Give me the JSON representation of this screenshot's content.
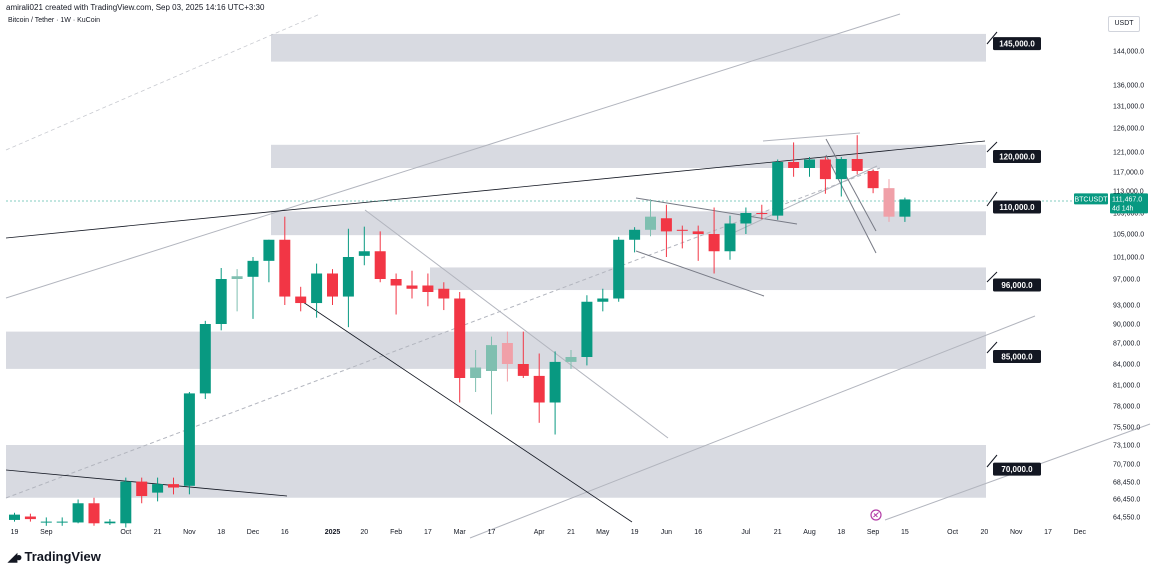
{
  "header": {
    "text": "amirali021 created with TradingView.com, Sep 03, 2025 14:16 UTC+3:30"
  },
  "brand": {
    "name": "TradingView"
  },
  "chart_data": {
    "type": "candlestick",
    "title": "Bitcoin / Tether · 1W · KuCoin",
    "currency": "USDT",
    "ylim": [
      64000,
      150000
    ],
    "y_ticks": [
      {
        "v": 144000,
        "label": "144,000.0"
      },
      {
        "v": 136000,
        "label": "136,000.0"
      },
      {
        "v": 131000,
        "label": "131,000.0"
      },
      {
        "v": 126000,
        "label": "126,000.0"
      },
      {
        "v": 121000,
        "label": "121,000.0"
      },
      {
        "v": 117000,
        "label": "117,000.0"
      },
      {
        "v": 113000,
        "label": "113,000.0"
      },
      {
        "v": 109000,
        "label": "109,000.0"
      },
      {
        "v": 105000,
        "label": "105,000.0"
      },
      {
        "v": 101000,
        "label": "101,000.0"
      },
      {
        "v": 97000,
        "label": "97,000.0"
      },
      {
        "v": 93000,
        "label": "93,000.0"
      },
      {
        "v": 90000,
        "label": "90,000.0"
      },
      {
        "v": 87000,
        "label": "87,000.0"
      },
      {
        "v": 84000,
        "label": "84,000.0"
      },
      {
        "v": 81000,
        "label": "81,000.0"
      },
      {
        "v": 78000,
        "label": "78,000.0"
      },
      {
        "v": 75500,
        "label": "75,500.0"
      },
      {
        "v": 73100,
        "label": "73,100.0"
      },
      {
        "v": 70700,
        "label": "70,700.0"
      },
      {
        "v": 68450,
        "label": "68,450.0"
      },
      {
        "v": 66450,
        "label": "66,450.0"
      },
      {
        "v": 64550,
        "label": "64,550.0"
      }
    ],
    "x_ticks": [
      {
        "i": 0,
        "label": "19",
        "bold": false
      },
      {
        "i": 2,
        "label": "Sep",
        "bold": false
      },
      {
        "i": 7,
        "label": "Oct",
        "bold": false
      },
      {
        "i": 9,
        "label": "21",
        "bold": false
      },
      {
        "i": 11,
        "label": "Nov",
        "bold": false
      },
      {
        "i": 13,
        "label": "18",
        "bold": false
      },
      {
        "i": 15,
        "label": "Dec",
        "bold": false
      },
      {
        "i": 17,
        "label": "16",
        "bold": false
      },
      {
        "i": 20,
        "label": "2025",
        "bold": true
      },
      {
        "i": 22,
        "label": "20",
        "bold": false
      },
      {
        "i": 24,
        "label": "Feb",
        "bold": false
      },
      {
        "i": 26,
        "label": "17",
        "bold": false
      },
      {
        "i": 28,
        "label": "Mar",
        "bold": false
      },
      {
        "i": 30,
        "label": "17",
        "bold": false
      },
      {
        "i": 33,
        "label": "Apr",
        "bold": false
      },
      {
        "i": 35,
        "label": "21",
        "bold": false
      },
      {
        "i": 37,
        "label": "May",
        "bold": false
      },
      {
        "i": 39,
        "label": "19",
        "bold": false
      },
      {
        "i": 41,
        "label": "Jun",
        "bold": false
      },
      {
        "i": 43,
        "label": "16",
        "bold": false
      },
      {
        "i": 46,
        "label": "Jul",
        "bold": false
      },
      {
        "i": 48,
        "label": "21",
        "bold": false
      },
      {
        "i": 50,
        "label": "Aug",
        "bold": false
      },
      {
        "i": 52,
        "label": "18",
        "bold": false
      },
      {
        "i": 54,
        "label": "Sep",
        "bold": false
      },
      {
        "i": 56,
        "label": "15",
        "bold": false
      },
      {
        "i": 59,
        "label": "Oct",
        "bold": false
      },
      {
        "i": 61,
        "label": "20",
        "bold": false
      },
      {
        "i": 63,
        "label": "Nov",
        "bold": false
      },
      {
        "i": 65,
        "label": "17",
        "bold": false
      },
      {
        "i": 67,
        "label": "Dec",
        "bold": false
      }
    ],
    "candles": [
      {
        "o": 64200,
        "h": 65000,
        "l": 64000,
        "c": 64800
      },
      {
        "o": 64600,
        "h": 64900,
        "l": 64000,
        "c": 64300
      },
      {
        "o": 64000,
        "h": 64500,
        "l": 63500,
        "c": 64000
      },
      {
        "o": 64000,
        "h": 64500,
        "l": 63500,
        "c": 64000
      },
      {
        "o": 63900,
        "h": 66400,
        "l": 63800,
        "c": 66000
      },
      {
        "o": 66000,
        "h": 66600,
        "l": 63500,
        "c": 63800
      },
      {
        "o": 63800,
        "h": 64300,
        "l": 63600,
        "c": 64000
      },
      {
        "o": 63800,
        "h": 69000,
        "l": 63300,
        "c": 68500
      },
      {
        "o": 68500,
        "h": 69000,
        "l": 66000,
        "c": 66800
      },
      {
        "o": 67200,
        "h": 69000,
        "l": 66200,
        "c": 68200
      },
      {
        "o": 68200,
        "h": 69000,
        "l": 67000,
        "c": 67800
      },
      {
        "o": 68000,
        "h": 80000,
        "l": 67000,
        "c": 79800
      },
      {
        "o": 79800,
        "h": 90500,
        "l": 79000,
        "c": 90000
      },
      {
        "o": 90000,
        "h": 99000,
        "l": 89000,
        "c": 97000
      },
      {
        "o": 97000,
        "h": 98800,
        "l": 92000,
        "c": 97500
      },
      {
        "o": 97400,
        "h": 101000,
        "l": 90800,
        "c": 100300
      },
      {
        "o": 100300,
        "h": 104000,
        "l": 96500,
        "c": 104000
      },
      {
        "o": 104000,
        "h": 108300,
        "l": 93000,
        "c": 94300
      },
      {
        "o": 94300,
        "h": 95800,
        "l": 92000,
        "c": 93300
      },
      {
        "o": 93300,
        "h": 99800,
        "l": 91000,
        "c": 98000
      },
      {
        "o": 98000,
        "h": 98800,
        "l": 93000,
        "c": 94300
      },
      {
        "o": 94300,
        "h": 106000,
        "l": 89500,
        "c": 101000
      },
      {
        "o": 101200,
        "h": 106400,
        "l": 99500,
        "c": 102000
      },
      {
        "o": 102000,
        "h": 105500,
        "l": 96500,
        "c": 97000
      },
      {
        "o": 97000,
        "h": 98000,
        "l": 91500,
        "c": 96000
      },
      {
        "o": 96000,
        "h": 98500,
        "l": 94000,
        "c": 95500
      },
      {
        "o": 96000,
        "h": 98000,
        "l": 92800,
        "c": 95000
      },
      {
        "o": 95500,
        "h": 96500,
        "l": 92200,
        "c": 94000
      },
      {
        "o": 94000,
        "h": 95000,
        "l": 78500,
        "c": 82000
      },
      {
        "o": 82000,
        "h": 86000,
        "l": 80000,
        "c": 83500
      },
      {
        "o": 83000,
        "h": 88000,
        "l": 77000,
        "c": 86700
      },
      {
        "o": 87000,
        "h": 88800,
        "l": 81500,
        "c": 84000
      },
      {
        "o": 84000,
        "h": 88800,
        "l": 82000,
        "c": 82300
      },
      {
        "o": 82300,
        "h": 85500,
        "l": 76000,
        "c": 78500
      },
      {
        "o": 78500,
        "h": 85800,
        "l": 74500,
        "c": 84300
      },
      {
        "o": 84300,
        "h": 86000,
        "l": 83300,
        "c": 85000
      },
      {
        "o": 85000,
        "h": 94500,
        "l": 83800,
        "c": 93500
      },
      {
        "o": 93500,
        "h": 95500,
        "l": 92000,
        "c": 94000
      },
      {
        "o": 94000,
        "h": 104500,
        "l": 93500,
        "c": 104000
      },
      {
        "o": 104000,
        "h": 106300,
        "l": 101800,
        "c": 105800
      },
      {
        "o": 105800,
        "h": 111500,
        "l": 104600,
        "c": 108300
      },
      {
        "o": 108000,
        "h": 110500,
        "l": 101000,
        "c": 105500
      },
      {
        "o": 105800,
        "h": 106600,
        "l": 102500,
        "c": 105600
      },
      {
        "o": 105500,
        "h": 106600,
        "l": 100300,
        "c": 105000
      },
      {
        "o": 105000,
        "h": 110000,
        "l": 98000,
        "c": 102000
      },
      {
        "o": 102000,
        "h": 108500,
        "l": 100500,
        "c": 107000
      },
      {
        "o": 107000,
        "h": 110000,
        "l": 105000,
        "c": 109000
      },
      {
        "o": 109000,
        "h": 110500,
        "l": 107800,
        "c": 108800
      },
      {
        "o": 108500,
        "h": 119500,
        "l": 107700,
        "c": 119000
      },
      {
        "o": 119000,
        "h": 123000,
        "l": 116000,
        "c": 117800
      },
      {
        "o": 117800,
        "h": 120000,
        "l": 116000,
        "c": 119500
      },
      {
        "o": 119500,
        "h": 120000,
        "l": 112500,
        "c": 115500
      },
      {
        "o": 115500,
        "h": 120000,
        "l": 112000,
        "c": 119600
      },
      {
        "o": 119600,
        "h": 124500,
        "l": 116500,
        "c": 117200
      },
      {
        "o": 117200,
        "h": 117500,
        "l": 112600,
        "c": 113600
      },
      {
        "o": 113600,
        "h": 115500,
        "l": 107300,
        "c": 108300
      },
      {
        "o": 108300,
        "h": 111800,
        "l": 107300,
        "c": 111467
      }
    ],
    "candle_colors": {
      "up": "#089981",
      "down": "#f23645",
      "up_faded": "#7fbfb0",
      "down_faded": "#f0a0a8"
    },
    "zones": [
      {
        "from": 141500,
        "to": 146500
      },
      {
        "from": 117800,
        "to": 122500
      },
      {
        "from": 104800,
        "to": 109300
      },
      {
        "from": 95300,
        "to": 99100
      },
      {
        "from": 83300,
        "to": 88800
      },
      {
        "from": 66600,
        "to": 73100
      }
    ],
    "levels": [
      {
        "label": "145,000.0",
        "value": 145000
      },
      {
        "label": "120,000.0",
        "value": 120000
      },
      {
        "label": "110,000.0",
        "value": 110000
      },
      {
        "label": "96,000.0",
        "value": 96000
      },
      {
        "label": "85,000.0",
        "value": 85000
      },
      {
        "label": "70,000.0",
        "value": 70000
      }
    ],
    "last_price": {
      "symbol": "BTCUSDT",
      "price": "111,467.0",
      "time_left": "4d 14h",
      "value": 111467
    }
  }
}
